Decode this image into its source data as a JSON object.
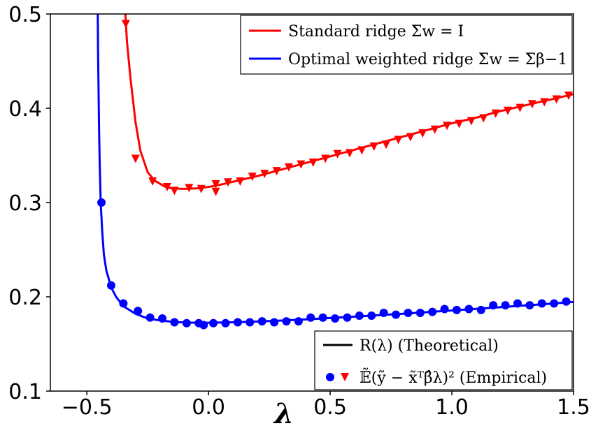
{
  "chart_data": {
    "type": "line",
    "xlabel": "λ",
    "ylabel": "",
    "xlim": [
      -0.65,
      1.5
    ],
    "ylim": [
      0.1,
      0.5
    ],
    "xticks": [
      -0.5,
      0.0,
      0.5,
      1.0,
      1.5
    ],
    "xtick_labels": [
      "−0.5",
      "0.0",
      "0.5",
      "1.0",
      "1.5"
    ],
    "yticks": [
      0.1,
      0.2,
      0.3,
      0.4,
      0.5
    ],
    "ytick_labels": [
      "0.1",
      "0.2",
      "0.3",
      "0.4",
      "0.5"
    ],
    "grid": false,
    "series": [
      {
        "name": "Standard ridge Σw = I",
        "color": "#ff0000",
        "marker": "triangle-down",
        "theory": [
          [
            -0.342,
            0.5
          ],
          [
            -0.335,
            0.47
          ],
          [
            -0.32,
            0.43
          ],
          [
            -0.3,
            0.385
          ],
          [
            -0.28,
            0.355
          ],
          [
            -0.25,
            0.332
          ],
          [
            -0.22,
            0.323
          ],
          [
            -0.18,
            0.317
          ],
          [
            -0.15,
            0.315
          ],
          [
            -0.1,
            0.3145
          ],
          [
            -0.05,
            0.315
          ],
          [
            0.0,
            0.3165
          ],
          [
            0.05,
            0.319
          ],
          [
            0.1,
            0.322
          ],
          [
            0.2,
            0.328
          ],
          [
            0.3,
            0.335
          ],
          [
            0.4,
            0.342
          ],
          [
            0.5,
            0.349
          ],
          [
            0.6,
            0.356
          ],
          [
            0.7,
            0.363
          ],
          [
            0.8,
            0.37
          ],
          [
            0.9,
            0.377
          ],
          [
            1.0,
            0.384
          ],
          [
            1.1,
            0.39
          ],
          [
            1.2,
            0.397
          ],
          [
            1.3,
            0.403
          ],
          [
            1.4,
            0.409
          ],
          [
            1.5,
            0.415
          ]
        ],
        "empirical": [
          [
            -0.34,
            0.49
          ],
          [
            -0.3,
            0.347
          ],
          [
            -0.23,
            0.323
          ],
          [
            -0.17,
            0.317
          ],
          [
            -0.14,
            0.313
          ],
          [
            -0.08,
            0.316
          ],
          [
            -0.03,
            0.315
          ],
          [
            0.03,
            0.312
          ],
          [
            0.03,
            0.32
          ],
          [
            0.08,
            0.322
          ],
          [
            0.13,
            0.323
          ],
          [
            0.18,
            0.328
          ],
          [
            0.23,
            0.331
          ],
          [
            0.28,
            0.334
          ],
          [
            0.33,
            0.338
          ],
          [
            0.38,
            0.341
          ],
          [
            0.43,
            0.343
          ],
          [
            0.48,
            0.347
          ],
          [
            0.53,
            0.352
          ],
          [
            0.58,
            0.353
          ],
          [
            0.63,
            0.356
          ],
          [
            0.68,
            0.36
          ],
          [
            0.73,
            0.362
          ],
          [
            0.78,
            0.367
          ],
          [
            0.83,
            0.37
          ],
          [
            0.88,
            0.374
          ],
          [
            0.93,
            0.378
          ],
          [
            0.98,
            0.382
          ],
          [
            1.03,
            0.384
          ],
          [
            1.08,
            0.387
          ],
          [
            1.13,
            0.39
          ],
          [
            1.18,
            0.395
          ],
          [
            1.23,
            0.398
          ],
          [
            1.28,
            0.401
          ],
          [
            1.33,
            0.405
          ],
          [
            1.38,
            0.407
          ],
          [
            1.43,
            0.41
          ],
          [
            1.48,
            0.414
          ]
        ]
      },
      {
        "name": "Optimal weighted ridge Σw = Σβ^−1",
        "color": "#0000ff",
        "marker": "circle",
        "theory": [
          [
            -0.455,
            0.5
          ],
          [
            -0.454,
            0.46
          ],
          [
            -0.452,
            0.42
          ],
          [
            -0.45,
            0.38
          ],
          [
            -0.447,
            0.34
          ],
          [
            -0.443,
            0.3
          ],
          [
            -0.437,
            0.27
          ],
          [
            -0.43,
            0.245
          ],
          [
            -0.42,
            0.228
          ],
          [
            -0.4,
            0.21
          ],
          [
            -0.38,
            0.2
          ],
          [
            -0.35,
            0.19
          ],
          [
            -0.3,
            0.182
          ],
          [
            -0.25,
            0.177
          ],
          [
            -0.2,
            0.175
          ],
          [
            -0.15,
            0.1735
          ],
          [
            -0.1,
            0.1728
          ],
          [
            -0.05,
            0.1725
          ],
          [
            0.0,
            0.1725
          ],
          [
            0.1,
            0.173
          ],
          [
            0.2,
            0.1738
          ],
          [
            0.3,
            0.1748
          ],
          [
            0.4,
            0.176
          ],
          [
            0.5,
            0.1775
          ],
          [
            0.6,
            0.179
          ],
          [
            0.7,
            0.1805
          ],
          [
            0.8,
            0.182
          ],
          [
            0.9,
            0.1838
          ],
          [
            1.0,
            0.1855
          ],
          [
            1.1,
            0.1872
          ],
          [
            1.2,
            0.189
          ],
          [
            1.3,
            0.1908
          ],
          [
            1.4,
            0.1926
          ],
          [
            1.5,
            0.1945
          ]
        ],
        "empirical": [
          [
            -0.44,
            0.3
          ],
          [
            -0.4,
            0.212
          ],
          [
            -0.35,
            0.193
          ],
          [
            -0.29,
            0.185
          ],
          [
            -0.24,
            0.178
          ],
          [
            -0.19,
            0.177
          ],
          [
            -0.14,
            0.173
          ],
          [
            -0.09,
            0.172
          ],
          [
            -0.04,
            0.172
          ],
          [
            -0.02,
            0.17
          ],
          [
            0.02,
            0.172
          ],
          [
            0.07,
            0.172
          ],
          [
            0.12,
            0.173
          ],
          [
            0.17,
            0.173
          ],
          [
            0.22,
            0.174
          ],
          [
            0.27,
            0.173
          ],
          [
            0.32,
            0.174
          ],
          [
            0.37,
            0.174
          ],
          [
            0.42,
            0.178
          ],
          [
            0.47,
            0.178
          ],
          [
            0.52,
            0.177
          ],
          [
            0.57,
            0.178
          ],
          [
            0.62,
            0.18
          ],
          [
            0.67,
            0.18
          ],
          [
            0.72,
            0.183
          ],
          [
            0.77,
            0.181
          ],
          [
            0.82,
            0.183
          ],
          [
            0.87,
            0.183
          ],
          [
            0.92,
            0.184
          ],
          [
            0.97,
            0.187
          ],
          [
            1.02,
            0.186
          ],
          [
            1.07,
            0.187
          ],
          [
            1.12,
            0.186
          ],
          [
            1.17,
            0.191
          ],
          [
            1.22,
            0.191
          ],
          [
            1.27,
            0.193
          ],
          [
            1.32,
            0.191
          ],
          [
            1.37,
            0.193
          ],
          [
            1.42,
            0.193
          ],
          [
            1.47,
            0.195
          ]
        ]
      }
    ],
    "legend_top": {
      "position": "top-right",
      "entries": [
        {
          "color": "#ff0000",
          "text": "Standard ridge Σw = I"
        },
        {
          "color": "#0000ff",
          "text": "Optimal weighted ridge Σw = Σβ−1"
        }
      ]
    },
    "legend_bottom": {
      "position": "bottom-right",
      "entries": [
        {
          "kind": "line",
          "color": "#000000",
          "text": "R(λ) (Theoretical)"
        },
        {
          "kind": "markers",
          "colors": [
            "#0000ff",
            "#ff0000"
          ],
          "text": "𝔼̃(ỹ − x̃ᵀβ̂λ)² (Empirical)"
        }
      ]
    }
  }
}
